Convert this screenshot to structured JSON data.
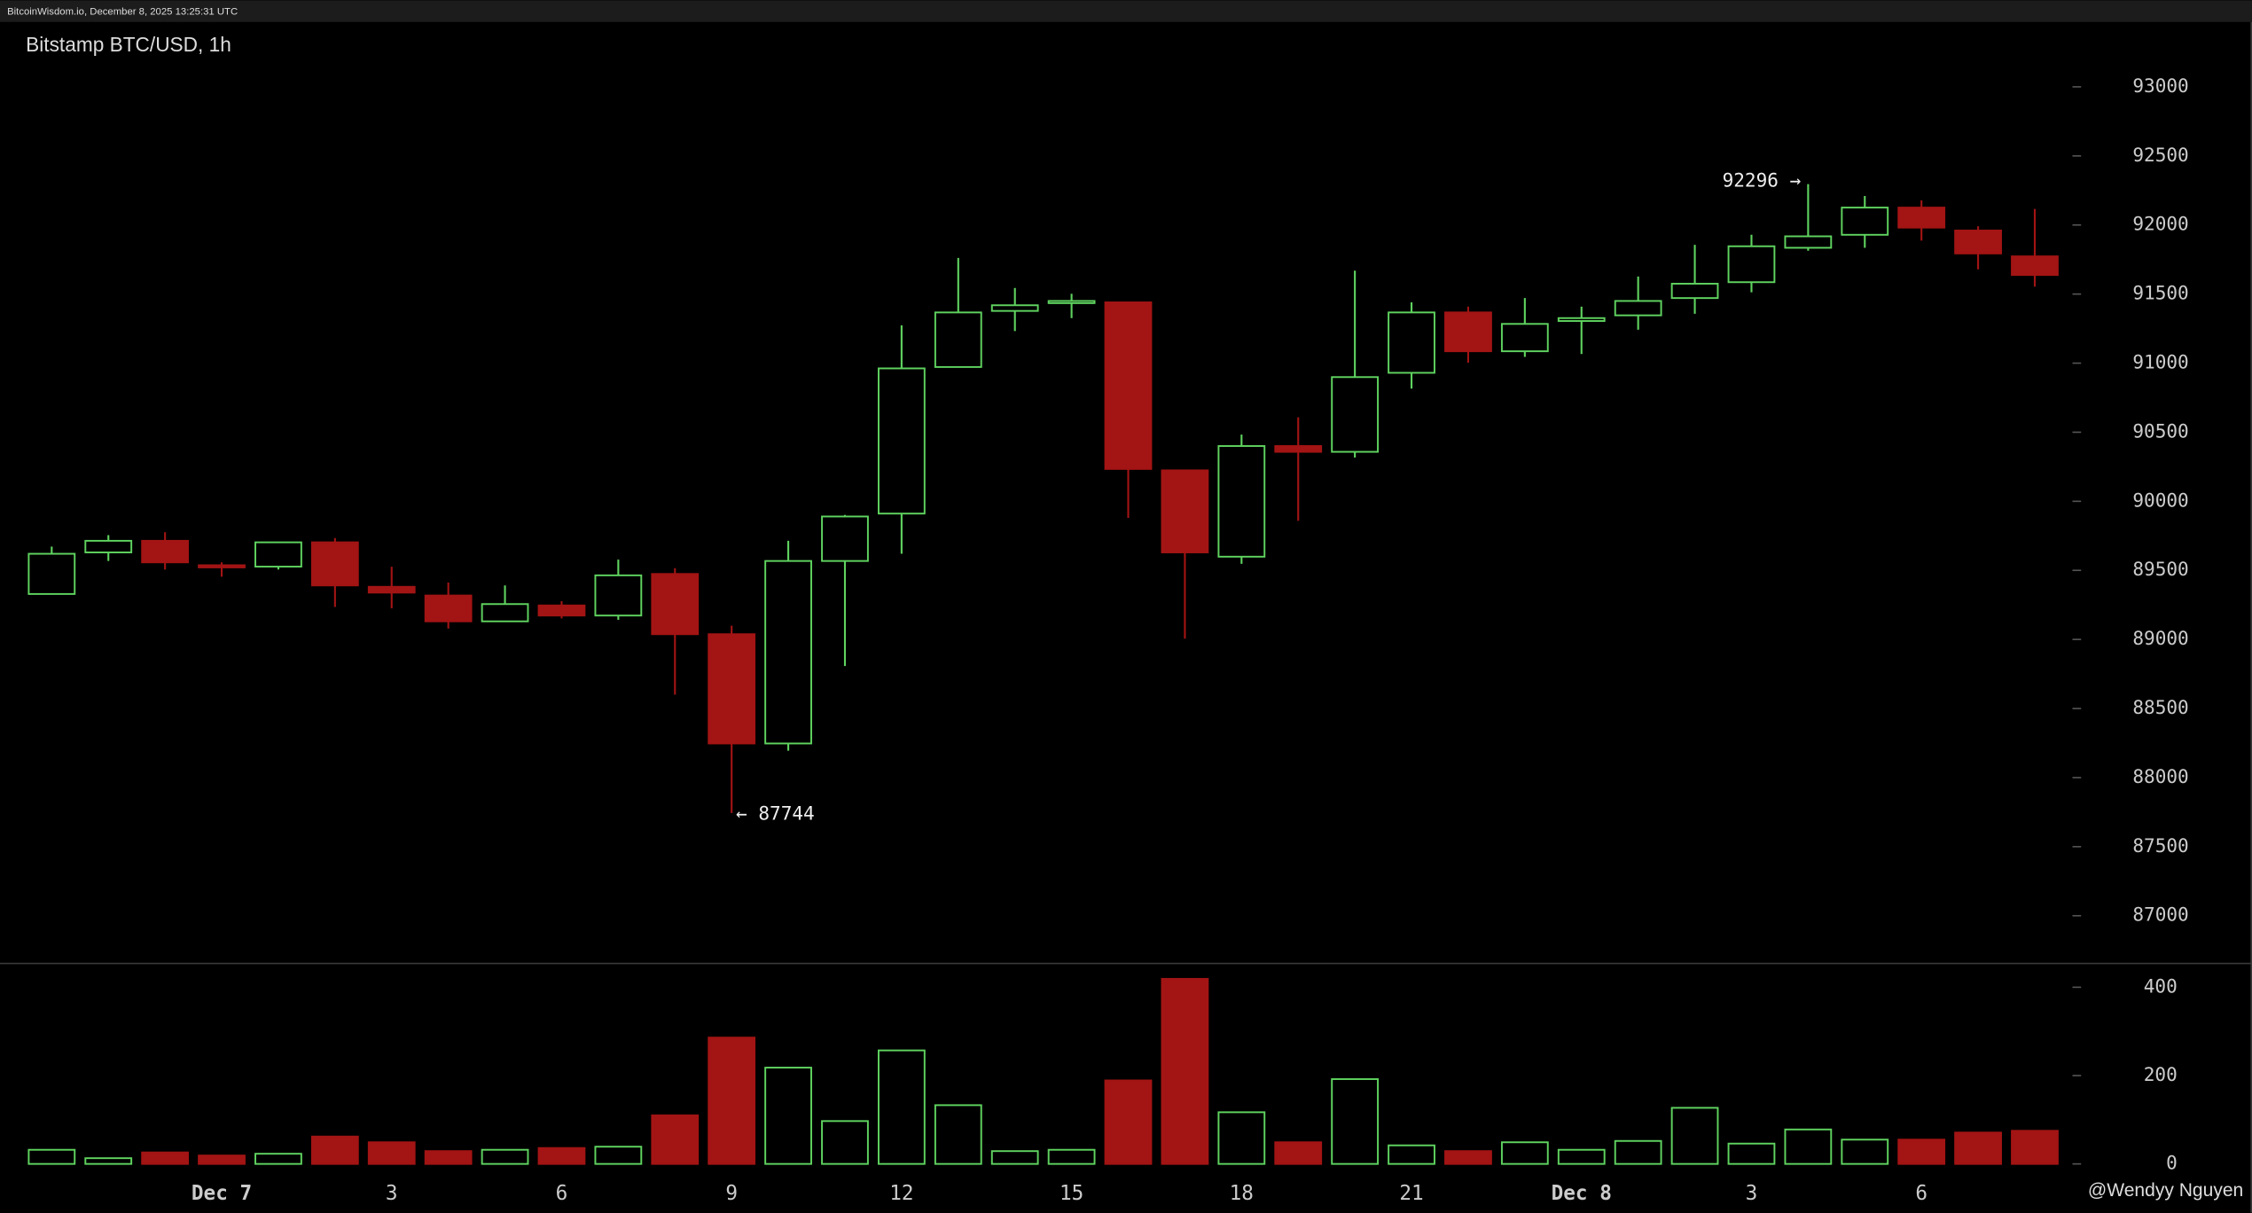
{
  "header": {
    "source": "BitcoinWisdom.io, December 8, 2025 13:25:31 UTC"
  },
  "watermark": "@Wendyy Nguyen",
  "chart_data": {
    "type": "candlestick",
    "title": "Bitstamp BTC/USD, 1h",
    "categories": [
      null,
      null,
      null,
      "Dec 7",
      null,
      null,
      "3",
      null,
      null,
      "6",
      null,
      null,
      "9",
      null,
      null,
      "12",
      null,
      null,
      "15",
      null,
      null,
      "18",
      null,
      null,
      "21",
      null,
      null,
      "Dec 8",
      null,
      null,
      "3",
      null,
      null,
      "6",
      null,
      null
    ],
    "open": [
      89329,
      89630,
      89714,
      89537,
      89527,
      89703,
      89381,
      89318,
      89131,
      89246,
      89173,
      89474,
      89038,
      88247,
      89568,
      89911,
      90972,
      91378,
      91440,
      91440,
      90224,
      89599,
      90400,
      90358,
      90930,
      91367,
      91086,
      91305,
      91346,
      91471,
      91586,
      91835,
      91929,
      92126,
      91960,
      91773
    ],
    "high": [
      89672,
      89755,
      89776,
      89558,
      89703,
      89734,
      89526,
      89412,
      89391,
      89277,
      89578,
      89516,
      89100,
      89714,
      89901,
      91274,
      91762,
      91544,
      91502,
      91440,
      90224,
      90483,
      90608,
      91669,
      91440,
      91409,
      91471,
      91409,
      91627,
      91856,
      91929,
      92296,
      92210,
      92178,
      91991,
      92116
    ],
    "low": [
      89329,
      89568,
      89506,
      89454,
      89506,
      89235,
      89225,
      89079,
      89131,
      89152,
      89142,
      88601,
      87744,
      88195,
      88808,
      89620,
      90972,
      91232,
      91326,
      89880,
      89006,
      89547,
      89859,
      90317,
      90816,
      91003,
      91045,
      91066,
      91242,
      91357,
      91513,
      91814,
      91835,
      91887,
      91679,
      91554
    ],
    "close": [
      89620,
      89714,
      89558,
      89527,
      89703,
      89391,
      89339,
      89131,
      89256,
      89173,
      89464,
      89038,
      88247,
      89568,
      89890,
      90962,
      91367,
      91419,
      91450,
      90234,
      89630,
      90400,
      90358,
      90899,
      91367,
      91086,
      91284,
      91326,
      91450,
      91575,
      91846,
      91918,
      92126,
      91981,
      91794,
      91638
    ],
    "volume": [
      32,
      13,
      26,
      19,
      23,
      62,
      49,
      29,
      32,
      36,
      39,
      110,
      286,
      218,
      97,
      257,
      133,
      29,
      32,
      189,
      419,
      117,
      49,
      192,
      42,
      29,
      49,
      32,
      52,
      127,
      46,
      78,
      55,
      55,
      71,
      75
    ],
    "up_color": "#5fd35f",
    "down_color": "#a31414",
    "ylim": [
      86660,
      93470
    ],
    "yticks": [
      87000,
      87500,
      88000,
      88500,
      89000,
      89500,
      90000,
      90500,
      91000,
      91500,
      92000,
      92500,
      93000
    ],
    "volume_ylim": [
      -16,
      449
    ],
    "volume_yticks": [
      0,
      200,
      400
    ],
    "annotations": [
      {
        "text": "92296 →"
      },
      {
        "text": "← 87744"
      }
    ]
  }
}
